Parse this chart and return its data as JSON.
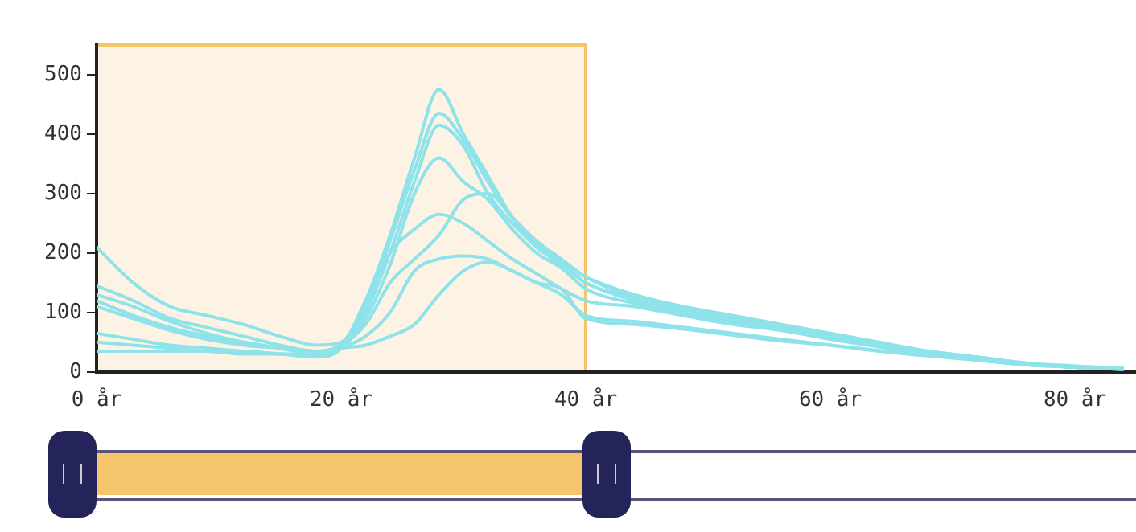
{
  "chart_data": {
    "type": "line",
    "x": [
      0,
      3,
      6,
      9,
      12,
      15,
      18,
      20,
      22,
      24,
      26,
      28,
      30,
      32,
      34,
      36,
      38,
      40,
      44,
      48,
      52,
      56,
      60,
      64,
      68,
      72,
      76,
      80,
      84
    ],
    "series": [
      {
        "color": "#8ee3ea",
        "values": [
          210,
          150,
          110,
          95,
          80,
          60,
          45,
          50,
          120,
          230,
          360,
          475,
          400,
          330,
          260,
          210,
          185,
          160,
          130,
          110,
          95,
          80,
          65,
          50,
          35,
          25,
          15,
          10,
          6
        ]
      },
      {
        "color": "#8ee3ea",
        "values": [
          145,
          120,
          90,
          75,
          60,
          45,
          35,
          45,
          110,
          220,
          340,
          435,
          390,
          320,
          260,
          215,
          185,
          150,
          125,
          105,
          90,
          75,
          60,
          48,
          35,
          25,
          15,
          8,
          5
        ]
      },
      {
        "color": "#8ee3ea",
        "values": [
          130,
          110,
          85,
          65,
          50,
          40,
          30,
          40,
          100,
          200,
          320,
          415,
          380,
          300,
          250,
          210,
          180,
          150,
          120,
          100,
          85,
          70,
          58,
          45,
          32,
          22,
          14,
          8,
          5
        ]
      },
      {
        "color": "#8ee3ea",
        "values": [
          120,
          95,
          75,
          60,
          50,
          40,
          30,
          40,
          90,
          180,
          300,
          360,
          320,
          290,
          240,
          200,
          175,
          140,
          115,
          95,
          80,
          70,
          55,
          42,
          30,
          22,
          14,
          8,
          5
        ]
      },
      {
        "color": "#8ee3ea",
        "values": [
          110,
          90,
          70,
          55,
          45,
          40,
          35,
          45,
          80,
          150,
          190,
          230,
          290,
          300,
          260,
          220,
          190,
          160,
          125,
          105,
          90,
          75,
          60,
          45,
          33,
          23,
          14,
          8,
          5
        ]
      },
      {
        "color": "#8ee3ea",
        "values": [
          65,
          55,
          45,
          40,
          35,
          30,
          25,
          40,
          120,
          200,
          240,
          265,
          250,
          220,
          190,
          165,
          140,
          120,
          110,
          95,
          82,
          70,
          58,
          45,
          32,
          22,
          14,
          8,
          5
        ]
      },
      {
        "color": "#8ee3ea",
        "values": [
          50,
          45,
          40,
          35,
          35,
          30,
          28,
          40,
          60,
          100,
          170,
          190,
          195,
          190,
          170,
          150,
          130,
          95,
          85,
          75,
          65,
          55,
          45,
          36,
          28,
          20,
          12,
          8,
          4
        ]
      },
      {
        "color": "#8ee3ea",
        "values": [
          35,
          35,
          35,
          35,
          30,
          30,
          30,
          40,
          45,
          60,
          80,
          130,
          170,
          185,
          170,
          150,
          140,
          90,
          80,
          72,
          62,
          52,
          45,
          35,
          27,
          20,
          12,
          8,
          4
        ]
      }
    ],
    "xlim": [
      0,
      85
    ],
    "xticks": [
      {
        "value": 0,
        "label": "0 år"
      },
      {
        "value": 20,
        "label": "20 år"
      },
      {
        "value": 40,
        "label": "40 år"
      },
      {
        "value": 60,
        "label": "60 år"
      },
      {
        "value": 80,
        "label": "80 år"
      }
    ],
    "ylim": [
      0,
      550
    ],
    "yticks": [
      0,
      100,
      200,
      300,
      400,
      500
    ],
    "bands": [
      {
        "axis": "x",
        "from": 0,
        "to": 40,
        "color": "#fdf3e4"
      }
    ],
    "marker": "none"
  }
}
